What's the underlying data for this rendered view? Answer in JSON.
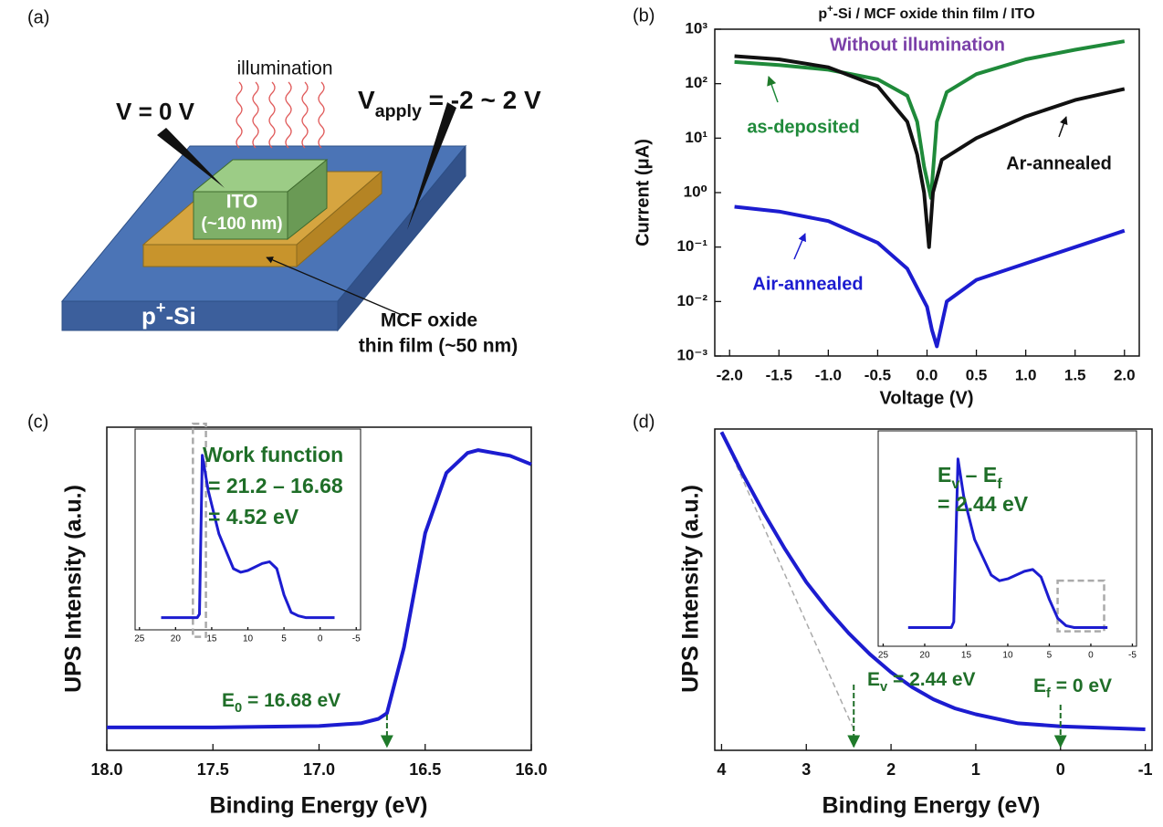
{
  "diagram": {
    "panel_label": "(a)",
    "illumination": "illumination",
    "v0": "V = 0 V",
    "vapply": [
      {
        "text": "V"
      },
      {
        "sub": "apply"
      },
      {
        "text": " = -2 ~ 2 V"
      }
    ],
    "ito": "ITO",
    "ito_thickness": "(~100 nm)",
    "substrate": [
      {
        "text": "p"
      },
      {
        "sup": "+"
      },
      {
        "text": "-Si"
      }
    ],
    "film": [
      "MCF oxide",
      "thin film (~50 nm)"
    ]
  },
  "chart_data": [
    {
      "type": "line",
      "panel_label": "(b)",
      "title": [
        {
          "text": "p"
        },
        {
          "sup": "+"
        },
        {
          "text": "-Si / MCF oxide thin film / ITO"
        }
      ],
      "annotation": "Without illumination",
      "xlabel": "Voltage (V)",
      "ylabel": "Current (μA)",
      "log_y": true,
      "xlim": [
        -2.15,
        2.15
      ],
      "ylim": [
        0.001,
        1000
      ],
      "xticks": [
        {
          "value": -2,
          "label": "-2.0"
        },
        -1.5,
        {
          "value": -1,
          "label": "-1.0"
        },
        -0.5,
        {
          "value": 0,
          "label": "0.0"
        },
        0.5,
        {
          "value": 1,
          "label": "1.0"
        },
        1.5,
        {
          "value": 2,
          "label": "2.0"
        }
      ],
      "yticks": [
        {
          "value": 0.001,
          "label": "10⁻³"
        },
        {
          "value": 0.01,
          "label": "10⁻²"
        },
        {
          "value": 0.1,
          "label": "10⁻¹"
        },
        {
          "value": 1,
          "label": "10⁰"
        },
        {
          "value": 10,
          "label": "10¹"
        },
        {
          "value": 100,
          "label": "10²"
        },
        {
          "value": 1000,
          "label": "10³"
        }
      ],
      "series": [
        {
          "name": "as-deposited",
          "color": "#1f8a3a",
          "x": [
            -1.95,
            -1.5,
            -1.0,
            -0.5,
            -0.2,
            -0.1,
            -0.03,
            0.04,
            0.1,
            0.2,
            0.5,
            1.0,
            1.5,
            2.0
          ],
          "values": [
            250,
            220,
            180,
            120,
            60,
            20,
            3,
            0.8,
            20,
            70,
            150,
            280,
            420,
            600
          ]
        },
        {
          "name": "Ar-annealed",
          "color": "#111111",
          "x": [
            -1.95,
            -1.5,
            -1.0,
            -0.5,
            -0.2,
            -0.1,
            -0.03,
            0.02,
            0.06,
            0.15,
            0.5,
            1.0,
            1.5,
            2.0
          ],
          "values": [
            320,
            280,
            200,
            90,
            20,
            5,
            1,
            0.1,
            1,
            4,
            10,
            25,
            50,
            80
          ]
        },
        {
          "name": "Air-annealed",
          "color": "#1c1cd0",
          "x": [
            -1.95,
            -1.5,
            -1.0,
            -0.5,
            -0.2,
            0,
            0.05,
            0.1,
            0.2,
            0.5,
            1.0,
            1.5,
            2.0
          ],
          "values": [
            0.55,
            0.45,
            0.3,
            0.12,
            0.04,
            0.008,
            0.003,
            0.0015,
            0.01,
            0.025,
            0.05,
            0.1,
            0.2
          ]
        }
      ]
    },
    {
      "type": "line",
      "panel_label": "(c)",
      "xlabel": "Binding Energy (eV)",
      "ylabel": "UPS Intensity (a.u.)",
      "xlim": [
        18.0,
        16.0
      ],
      "ylim": [
        -8,
        105
      ],
      "color": "#1c1cd0",
      "xticks": [
        {
          "value": 18,
          "label": "18.0"
        },
        17.5,
        {
          "value": 17,
          "label": "17.0"
        },
        16.5,
        {
          "value": 16,
          "label": "16.0"
        }
      ],
      "x": [
        18.0,
        17.5,
        17.0,
        16.8,
        16.72,
        16.68,
        16.6,
        16.5,
        16.4,
        16.3,
        16.25,
        16.1,
        16.0
      ],
      "values": [
        0,
        0,
        0.5,
        1.5,
        3,
        5,
        28,
        68,
        89,
        96,
        97,
        95,
        92
      ],
      "annotations": [
        {
          "label": [
            {
              "text": "E"
            },
            {
              "sub": "0"
            },
            {
              "text": " = 16.68 eV"
            }
          ],
          "x": 16.68
        }
      ]
    },
    {
      "type": "line",
      "inset_of": 1,
      "xlim": [
        25.6,
        -5.6
      ],
      "ylim": [
        -5,
        110
      ],
      "color": "#1c1cd0",
      "xticks": [
        25,
        20,
        15,
        10,
        5,
        0,
        -5
      ],
      "x": [
        22,
        17,
        16.7,
        16.3,
        15.5,
        14,
        12,
        11,
        10,
        8,
        7,
        6,
        5,
        4,
        3,
        2,
        0,
        -2
      ],
      "values": [
        2,
        2,
        4,
        95,
        75,
        50,
        30,
        28,
        29,
        33,
        34,
        30,
        15,
        5,
        3,
        2,
        2,
        2
      ],
      "highlight_xlim": [
        17.6,
        15.8
      ],
      "highlight_ylim": [
        -9,
        113
      ],
      "annotation": [
        "Work function",
        "= 21.2 – 16.68",
        "= 4.52 eV"
      ]
    },
    {
      "type": "line",
      "panel_label": "(d)",
      "xlabel": "Binding Energy (eV)",
      "ylabel": "UPS Intensity (a.u.)",
      "xlim": [
        4.08,
        -1.08
      ],
      "ylim": [
        -6,
        101
      ],
      "color": "#1c1cd0",
      "xticks": [
        4,
        3,
        2,
        1,
        0,
        -1
      ],
      "x": [
        4,
        3.75,
        3.5,
        3.25,
        3,
        2.75,
        2.5,
        2.25,
        2,
        1.75,
        1.5,
        1.25,
        1,
        0.5,
        0,
        -1
      ],
      "values": [
        100,
        86,
        73,
        61,
        50,
        41,
        33,
        26,
        20,
        15,
        11,
        8,
        6,
        3,
        2,
        1
      ],
      "annotations": [
        {
          "label": [
            {
              "text": "E"
            },
            {
              "sub": "v"
            },
            {
              "text": " = 2.44 eV"
            }
          ],
          "x": 2.44
        },
        {
          "label": [
            {
              "text": "E"
            },
            {
              "sub": "f"
            },
            {
              "text": " = 0 eV"
            }
          ],
          "x": 0
        }
      ]
    },
    {
      "type": "line",
      "inset_of": 3,
      "xlim": [
        25.6,
        -5.5
      ],
      "ylim": [
        -5,
        110
      ],
      "color": "#1c1cd0",
      "xticks": [
        25,
        20,
        15,
        10,
        5,
        0,
        -5
      ],
      "x": [
        22,
        16.8,
        16.5,
        16,
        15.3,
        14,
        12,
        11,
        10,
        8,
        7,
        6,
        5,
        4,
        3,
        2,
        0,
        -2
      ],
      "values": [
        5,
        5,
        8,
        95,
        75,
        52,
        33,
        30,
        31,
        35,
        36,
        32,
        20,
        10,
        6,
        5,
        5,
        5
      ],
      "highlight_xlim": [
        4,
        -1.6
      ],
      "highlight_ylim": [
        3,
        30
      ],
      "annotation": [
        [
          {
            "text": "E"
          },
          {
            "sub": "v"
          },
          {
            "text": " – E"
          },
          {
            "sub": "f"
          }
        ],
        "= 2.44 eV"
      ]
    }
  ]
}
